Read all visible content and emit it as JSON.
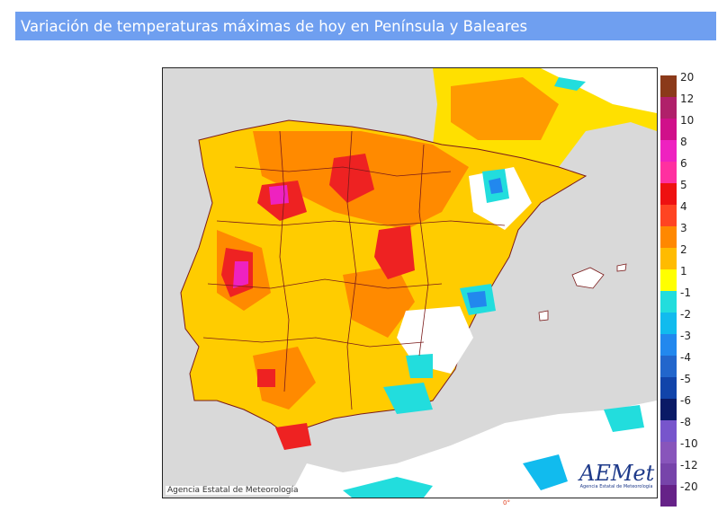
{
  "header": {
    "title": "Variación de temperaturas máximas de hoy en Península y Baleares"
  },
  "map": {
    "credit": "Agencia Estatal de Meteorología",
    "logo_text": "AEMet",
    "logo_subtext": "Agencia Estatal de Meteorología",
    "bottom_mark": "0°"
  },
  "legend": {
    "entries": [
      {
        "label": "20",
        "color": "#8b3a1a"
      },
      {
        "label": "12",
        "color": "#b0206a"
      },
      {
        "label": "10",
        "color": "#d0108a"
      },
      {
        "label": "8",
        "color": "#ee22c0"
      },
      {
        "label": "6",
        "color": "#ff30a0"
      },
      {
        "label": "5",
        "color": "#ee1111"
      },
      {
        "label": "4",
        "color": "#ff4422"
      },
      {
        "label": "3",
        "color": "#ff8800"
      },
      {
        "label": "2",
        "color": "#ffbb00"
      },
      {
        "label": "1",
        "color": "#ffff00"
      },
      {
        "label": "-1",
        "color": "#22dddd"
      },
      {
        "label": "-2",
        "color": "#11bbee"
      },
      {
        "label": "-3",
        "color": "#2288ee"
      },
      {
        "label": "-4",
        "color": "#2266cc"
      },
      {
        "label": "-5",
        "color": "#1144aa"
      },
      {
        "label": "-6",
        "color": "#0a1a66"
      },
      {
        "label": "-8",
        "color": "#7755cc"
      },
      {
        "label": "-10",
        "color": "#8855bb"
      },
      {
        "label": "-12",
        "color": "#7744aa"
      },
      {
        "label": "-20",
        "color": "#662288"
      }
    ]
  }
}
